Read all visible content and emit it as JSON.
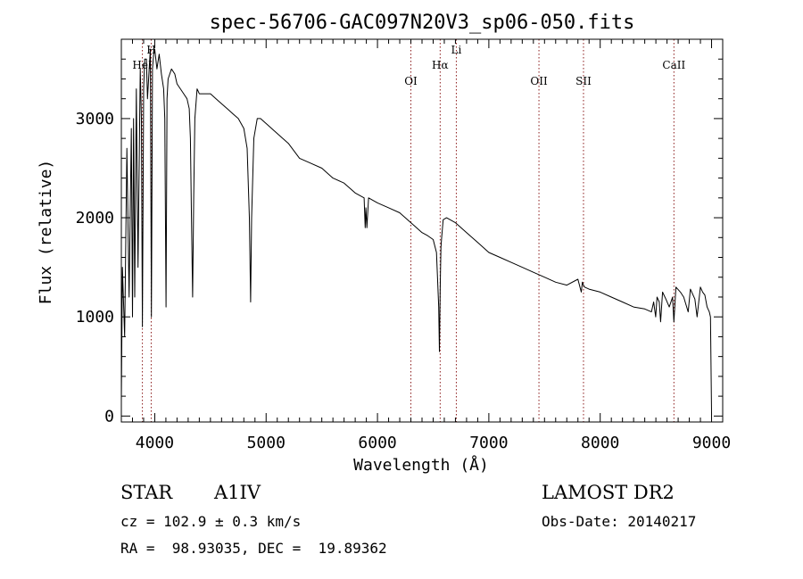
{
  "chart_data": {
    "type": "line",
    "title": "spec-56706-GAC097N20V3_sp06-050.fits",
    "xlabel": "Wavelength (Å)",
    "ylabel": "Flux (relative)",
    "xlim": [
      3700,
      9100
    ],
    "ylim": [
      -60,
      3800
    ],
    "xticks": [
      4000,
      5000,
      6000,
      7000,
      8000,
      9000
    ],
    "yticks": [
      0,
      1000,
      2000,
      3000
    ],
    "grid": false,
    "series": [
      {
        "line_color": "#000000",
        "x": [
          3700,
          3710,
          3730,
          3750,
          3770,
          3790,
          3800,
          3810,
          3820,
          3835,
          3850,
          3870,
          3880,
          3889,
          3900,
          3910,
          3925,
          3935,
          3950,
          3960,
          3970,
          3980,
          3990,
          4000,
          4020,
          4040,
          4060,
          4080,
          4090,
          4101,
          4110,
          4120,
          4150,
          4180,
          4200,
          4230,
          4260,
          4290,
          4310,
          4320,
          4330,
          4340,
          4350,
          4360,
          4380,
          4400,
          4450,
          4500,
          4550,
          4600,
          4650,
          4700,
          4750,
          4800,
          4830,
          4850,
          4861,
          4870,
          4890,
          4920,
          4950,
          5000,
          5100,
          5200,
          5300,
          5400,
          5500,
          5600,
          5700,
          5800,
          5880,
          5890,
          5896,
          5905,
          5920,
          6000,
          6100,
          6200,
          6300,
          6400,
          6450,
          6500,
          6530,
          6550,
          6556,
          6563,
          6570,
          6576,
          6590,
          6620,
          6700,
          6800,
          6900,
          7000,
          7100,
          7200,
          7300,
          7400,
          7500,
          7600,
          7700,
          7800,
          7830,
          7840,
          7850,
          7860,
          7900,
          8000,
          8100,
          8200,
          8300,
          8400,
          8460,
          8480,
          8498,
          8510,
          8530,
          8542,
          8560,
          8590,
          8620,
          8650,
          8662,
          8680,
          8720,
          8750,
          8790,
          8810,
          8850,
          8870,
          8900,
          8920,
          8940,
          8960,
          8980,
          8990,
          9000
        ],
        "y": [
          150,
          1500,
          800,
          2700,
          1200,
          2900,
          1000,
          3000,
          1200,
          3300,
          1500,
          3500,
          3000,
          900,
          3300,
          3600,
          3600,
          3200,
          3500,
          3700,
          1000,
          3500,
          3650,
          3700,
          3500,
          3650,
          3450,
          3300,
          3000,
          1100,
          3200,
          3400,
          3500,
          3450,
          3350,
          3300,
          3250,
          3200,
          3100,
          2800,
          2000,
          1200,
          2200,
          3000,
          3300,
          3250,
          3250,
          3250,
          3200,
          3150,
          3100,
          3050,
          3000,
          2900,
          2700,
          2000,
          1150,
          2000,
          2800,
          3000,
          3000,
          2950,
          2850,
          2750,
          2600,
          2550,
          2500,
          2400,
          2350,
          2250,
          2200,
          1900,
          2100,
          1900,
          2200,
          2150,
          2100,
          2050,
          1950,
          1850,
          1820,
          1780,
          1650,
          1100,
          650,
          1250,
          1700,
          1800,
          1980,
          2000,
          1950,
          1850,
          1750,
          1650,
          1600,
          1550,
          1500,
          1450,
          1400,
          1350,
          1320,
          1380,
          1250,
          1350,
          1320,
          1300,
          1280,
          1250,
          1200,
          1150,
          1100,
          1080,
          1050,
          1150,
          1000,
          1200,
          1150,
          950,
          1250,
          1180,
          1100,
          1200,
          950,
          1300,
          1250,
          1200,
          1050,
          1280,
          1180,
          1000,
          1300,
          1250,
          1220,
          1100,
          1050,
          1000,
          30
        ]
      }
    ],
    "spectral_lines": [
      {
        "label": "HeI",
        "x": 3889,
        "row": "mid"
      },
      {
        "label": "H",
        "x": 3968,
        "row": "high"
      },
      {
        "label": "OI",
        "x": 6300,
        "row": "low"
      },
      {
        "label": "Hα",
        "x": 6563,
        "row": "mid"
      },
      {
        "label": "Li",
        "x": 6708,
        "row": "high"
      },
      {
        "label": "OII",
        "x": 7450,
        "row": "low"
      },
      {
        "label": "SII",
        "x": 7850,
        "row": "low"
      },
      {
        "label": "CaII",
        "x": 8662,
        "row": "mid"
      }
    ],
    "line_marker_color": "#8b1a1a"
  },
  "info": {
    "object_class": "STAR",
    "subclass": "A1IV",
    "survey": "LAMOST DR2",
    "cz": "cz = 102.9 ± 0.3 km/s",
    "obs_date": "Obs-Date: 20140217",
    "coords": "RA =  98.93035, DEC =  19.89362"
  }
}
